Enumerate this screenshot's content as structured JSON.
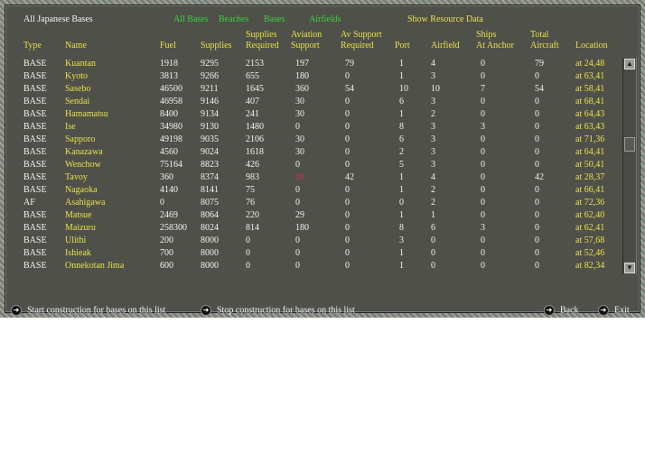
{
  "title": "All Japanese Bases",
  "filters": [
    "All Bases",
    "Beaches",
    "Bases",
    "Airfields"
  ],
  "show_resource": "Show Resource Data",
  "columns": [
    [
      "",
      "Type"
    ],
    [
      "",
      "Name"
    ],
    [
      "",
      "Fuel"
    ],
    [
      "",
      "Supplies"
    ],
    [
      "Supplies",
      "Required"
    ],
    [
      "Aviation",
      "Support"
    ],
    [
      "Av Support",
      "Required"
    ],
    [
      "",
      "Port"
    ],
    [
      "",
      "Airfield"
    ],
    [
      "Ships",
      "At Anchor"
    ],
    [
      "Total",
      "Aircraft"
    ],
    [
      "",
      "Location"
    ]
  ],
  "rows": [
    [
      "BASE",
      "Kuantan",
      "1918",
      "9295",
      "2153",
      "197",
      "79",
      "1",
      "4",
      "0",
      "79",
      "at 24,48"
    ],
    [
      "BASE",
      "Kyoto",
      "3813",
      "9266",
      "655",
      "180",
      "0",
      "1",
      "3",
      "0",
      "0",
      "at 63,41"
    ],
    [
      "BASE",
      "Sasebo",
      "46500",
      "9211",
      "1645",
      "360",
      "54",
      "10",
      "10",
      "7",
      "54",
      "at 58,41"
    ],
    [
      "BASE",
      "Sendai",
      "46958",
      "9146",
      "407",
      "30",
      "0",
      "6",
      "3",
      "0",
      "0",
      "at 68,41"
    ],
    [
      "BASE",
      "Hamamatsu",
      "8400",
      "9134",
      "241",
      "30",
      "0",
      "1",
      "2",
      "0",
      "0",
      "at 64,43"
    ],
    [
      "BASE",
      "Ise",
      "34980",
      "9130",
      "1480",
      "0",
      "0",
      "8",
      "3",
      "3",
      "0",
      "at 63,43"
    ],
    [
      "BASE",
      "Sapporo",
      "49198",
      "9035",
      "2106",
      "30",
      "0",
      "6",
      "3",
      "0",
      "0",
      "at 71,36"
    ],
    [
      "BASE",
      "Kanazawa",
      "4560",
      "9024",
      "1618",
      "30",
      "0",
      "2",
      "3",
      "0",
      "0",
      "at 64,41"
    ],
    [
      "BASE",
      "Wenchow",
      "75164",
      "8823",
      "426",
      "0",
      "0",
      "5",
      "3",
      "0",
      "0",
      "at 50,41"
    ],
    [
      "BASE",
      "Tavoy",
      "360",
      "8374",
      "983",
      "26",
      "42",
      "1",
      "4",
      "0",
      "42",
      "at 28,37"
    ],
    [
      "BASE",
      "Nagaoka",
      "4140",
      "8141",
      "75",
      "0",
      "0",
      "1",
      "2",
      "0",
      "0",
      "at 66,41"
    ],
    [
      "AF",
      "Asahigawa",
      "0",
      "8075",
      "76",
      "0",
      "0",
      "0",
      "2",
      "0",
      "0",
      "at 72,36"
    ],
    [
      "BASE",
      "Matsue",
      "2469",
      "8064",
      "220",
      "29",
      "0",
      "1",
      "1",
      "0",
      "0",
      "at 62,40"
    ],
    [
      "BASE",
      "Maizuru",
      "258300",
      "8024",
      "814",
      "180",
      "0",
      "8",
      "6",
      "3",
      "0",
      "at 62,41"
    ],
    [
      "BASE",
      "Ulithi",
      "200",
      "8000",
      "0",
      "0",
      "0",
      "3",
      "0",
      "0",
      "0",
      "at 57,68"
    ],
    [
      "BASE",
      "Ishieak",
      "700",
      "8000",
      "0",
      "0",
      "0",
      "1",
      "0",
      "0",
      "0",
      "at 52,46"
    ],
    [
      "BASE",
      "Onnekotan Jima",
      "600",
      "8000",
      "0",
      "0",
      "0",
      "1",
      "0",
      "0",
      "0",
      "at 82,34"
    ]
  ],
  "highlight": {
    "row": 9,
    "col": 5,
    "color": "#e03050"
  },
  "footer": {
    "start": "Start construction for bases on this list",
    "stop": "Stop construction for bases on this list",
    "back": "Back",
    "exit": "Exit"
  }
}
